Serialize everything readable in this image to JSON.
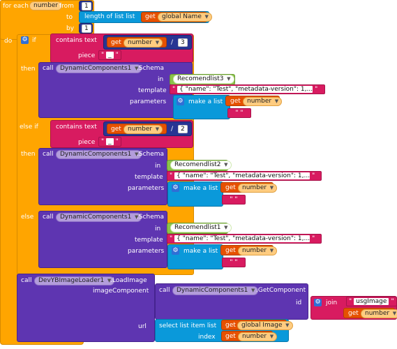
{
  "for_each": {
    "label": "for each",
    "var": "number",
    "from_label": "from",
    "from_val": "1",
    "to_label": "to",
    "length_label": "length of list  list",
    "get_label": "get",
    "global_name": "global Name",
    "by_label": "by",
    "by_val": "1",
    "do_label": "do"
  },
  "if1": {
    "if_label": "if",
    "contains_label": "contains  text",
    "get_label": "get",
    "var": "number",
    "div": "/",
    "div_val": "3",
    "piece_label": "piece",
    "piece_val": "_"
  },
  "then1": {
    "then_label": "then",
    "call_label": "call",
    "component": "DynamicComponents1",
    "method": ".Schema",
    "in_label": "in",
    "in_val": "Recomendlist3",
    "template_label": "template",
    "template_val": "{     \"name\": \"Test\",     \"metadata-version\": 1,...",
    "parameters_label": "parameters",
    "make_list": "make a list",
    "get_label": "get",
    "var": "number",
    "empty": "\"  \""
  },
  "elseif": {
    "label": "else if",
    "contains_label": "contains  text",
    "get_label": "get",
    "var": "number",
    "div": "/",
    "div_val": "2",
    "piece_label": "piece",
    "piece_val": "_"
  },
  "then2": {
    "then_label": "then",
    "call_label": "call",
    "component": "DynamicComponents1",
    "method": ".Schema",
    "in_label": "in",
    "in_val": "Recomendlist2",
    "template_label": "template",
    "template_val": "{     \"name\": \"Test\",     \"metadata-version\": 1,...",
    "parameters_label": "parameters",
    "make_list": "make a list",
    "get_label": "get",
    "var": "number",
    "empty": "\"  \""
  },
  "else": {
    "else_label": "else",
    "call_label": "call",
    "component": "DynamicComponents1",
    "method": ".Schema",
    "in_label": "in",
    "in_val": "Recomendlist1",
    "template_label": "template",
    "template_val": "{     \"name\": \"Test\",     \"metadata-version\": 1,...",
    "parameters_label": "parameters",
    "make_list": "make a list",
    "get_label": "get",
    "var": "number",
    "empty": "\"  \""
  },
  "load": {
    "call_label": "call",
    "component": "DevYBImageLoader1",
    "method": ".LoadImage",
    "image_component_label": "imageComponent",
    "inner_call": "call",
    "inner_component": "DynamicComponents1",
    "inner_method": ".GetComponent",
    "id_label": "id",
    "join_label": "join",
    "join_str": "usgImage",
    "get_label": "get",
    "var": "number",
    "url_label": "url",
    "select_label": "select list item  list",
    "global_image": "global Image",
    "index_label": "index"
  }
}
